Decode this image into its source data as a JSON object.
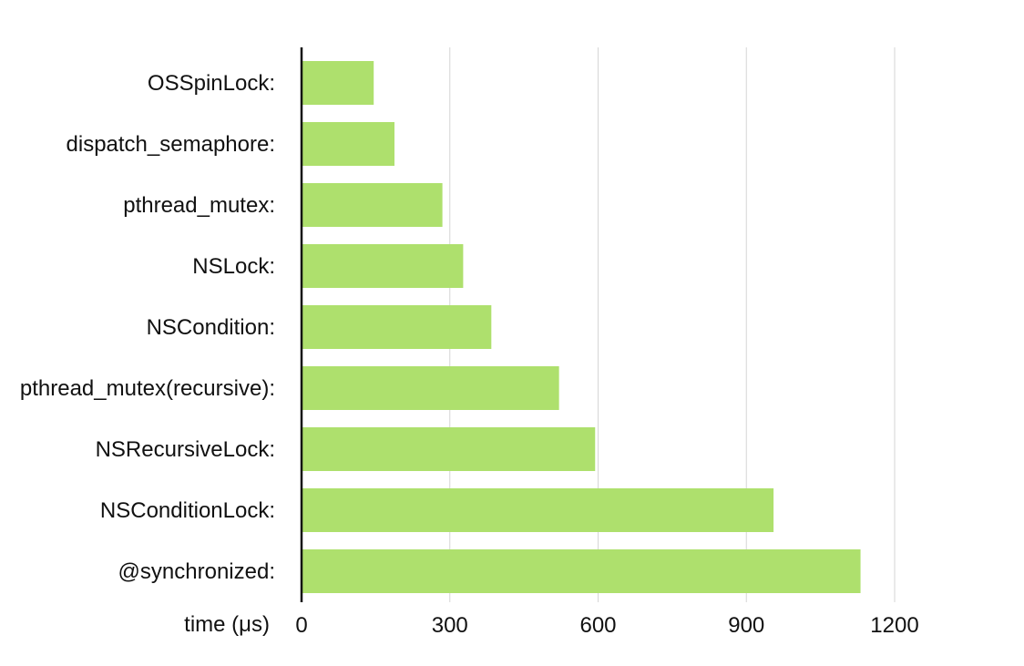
{
  "chart_data": {
    "type": "bar",
    "orientation": "horizontal",
    "categories": [
      "OSSpinLock:",
      "dispatch_semaphore:",
      "pthread_mutex:",
      "NSLock:",
      "NSCondition:",
      "pthread_mutex(recursive):",
      "NSRecursiveLock:",
      "NSConditionLock:",
      "@synchronized:"
    ],
    "values": [
      146,
      188,
      285,
      327,
      384,
      521,
      594,
      955,
      1131
    ],
    "title": "",
    "xlabel": "time (μs)",
    "ylabel": "",
    "xlim": [
      0,
      1360
    ],
    "xticks": [
      0,
      300,
      600,
      900,
      1200
    ],
    "xtick_labels": [
      "0",
      "300",
      "600",
      "900",
      "1200"
    ],
    "grid": "vertical",
    "legend": "none",
    "bar_color": "#aee06d",
    "grid_color": "#d6d6d6",
    "axis_color": "#111111"
  }
}
